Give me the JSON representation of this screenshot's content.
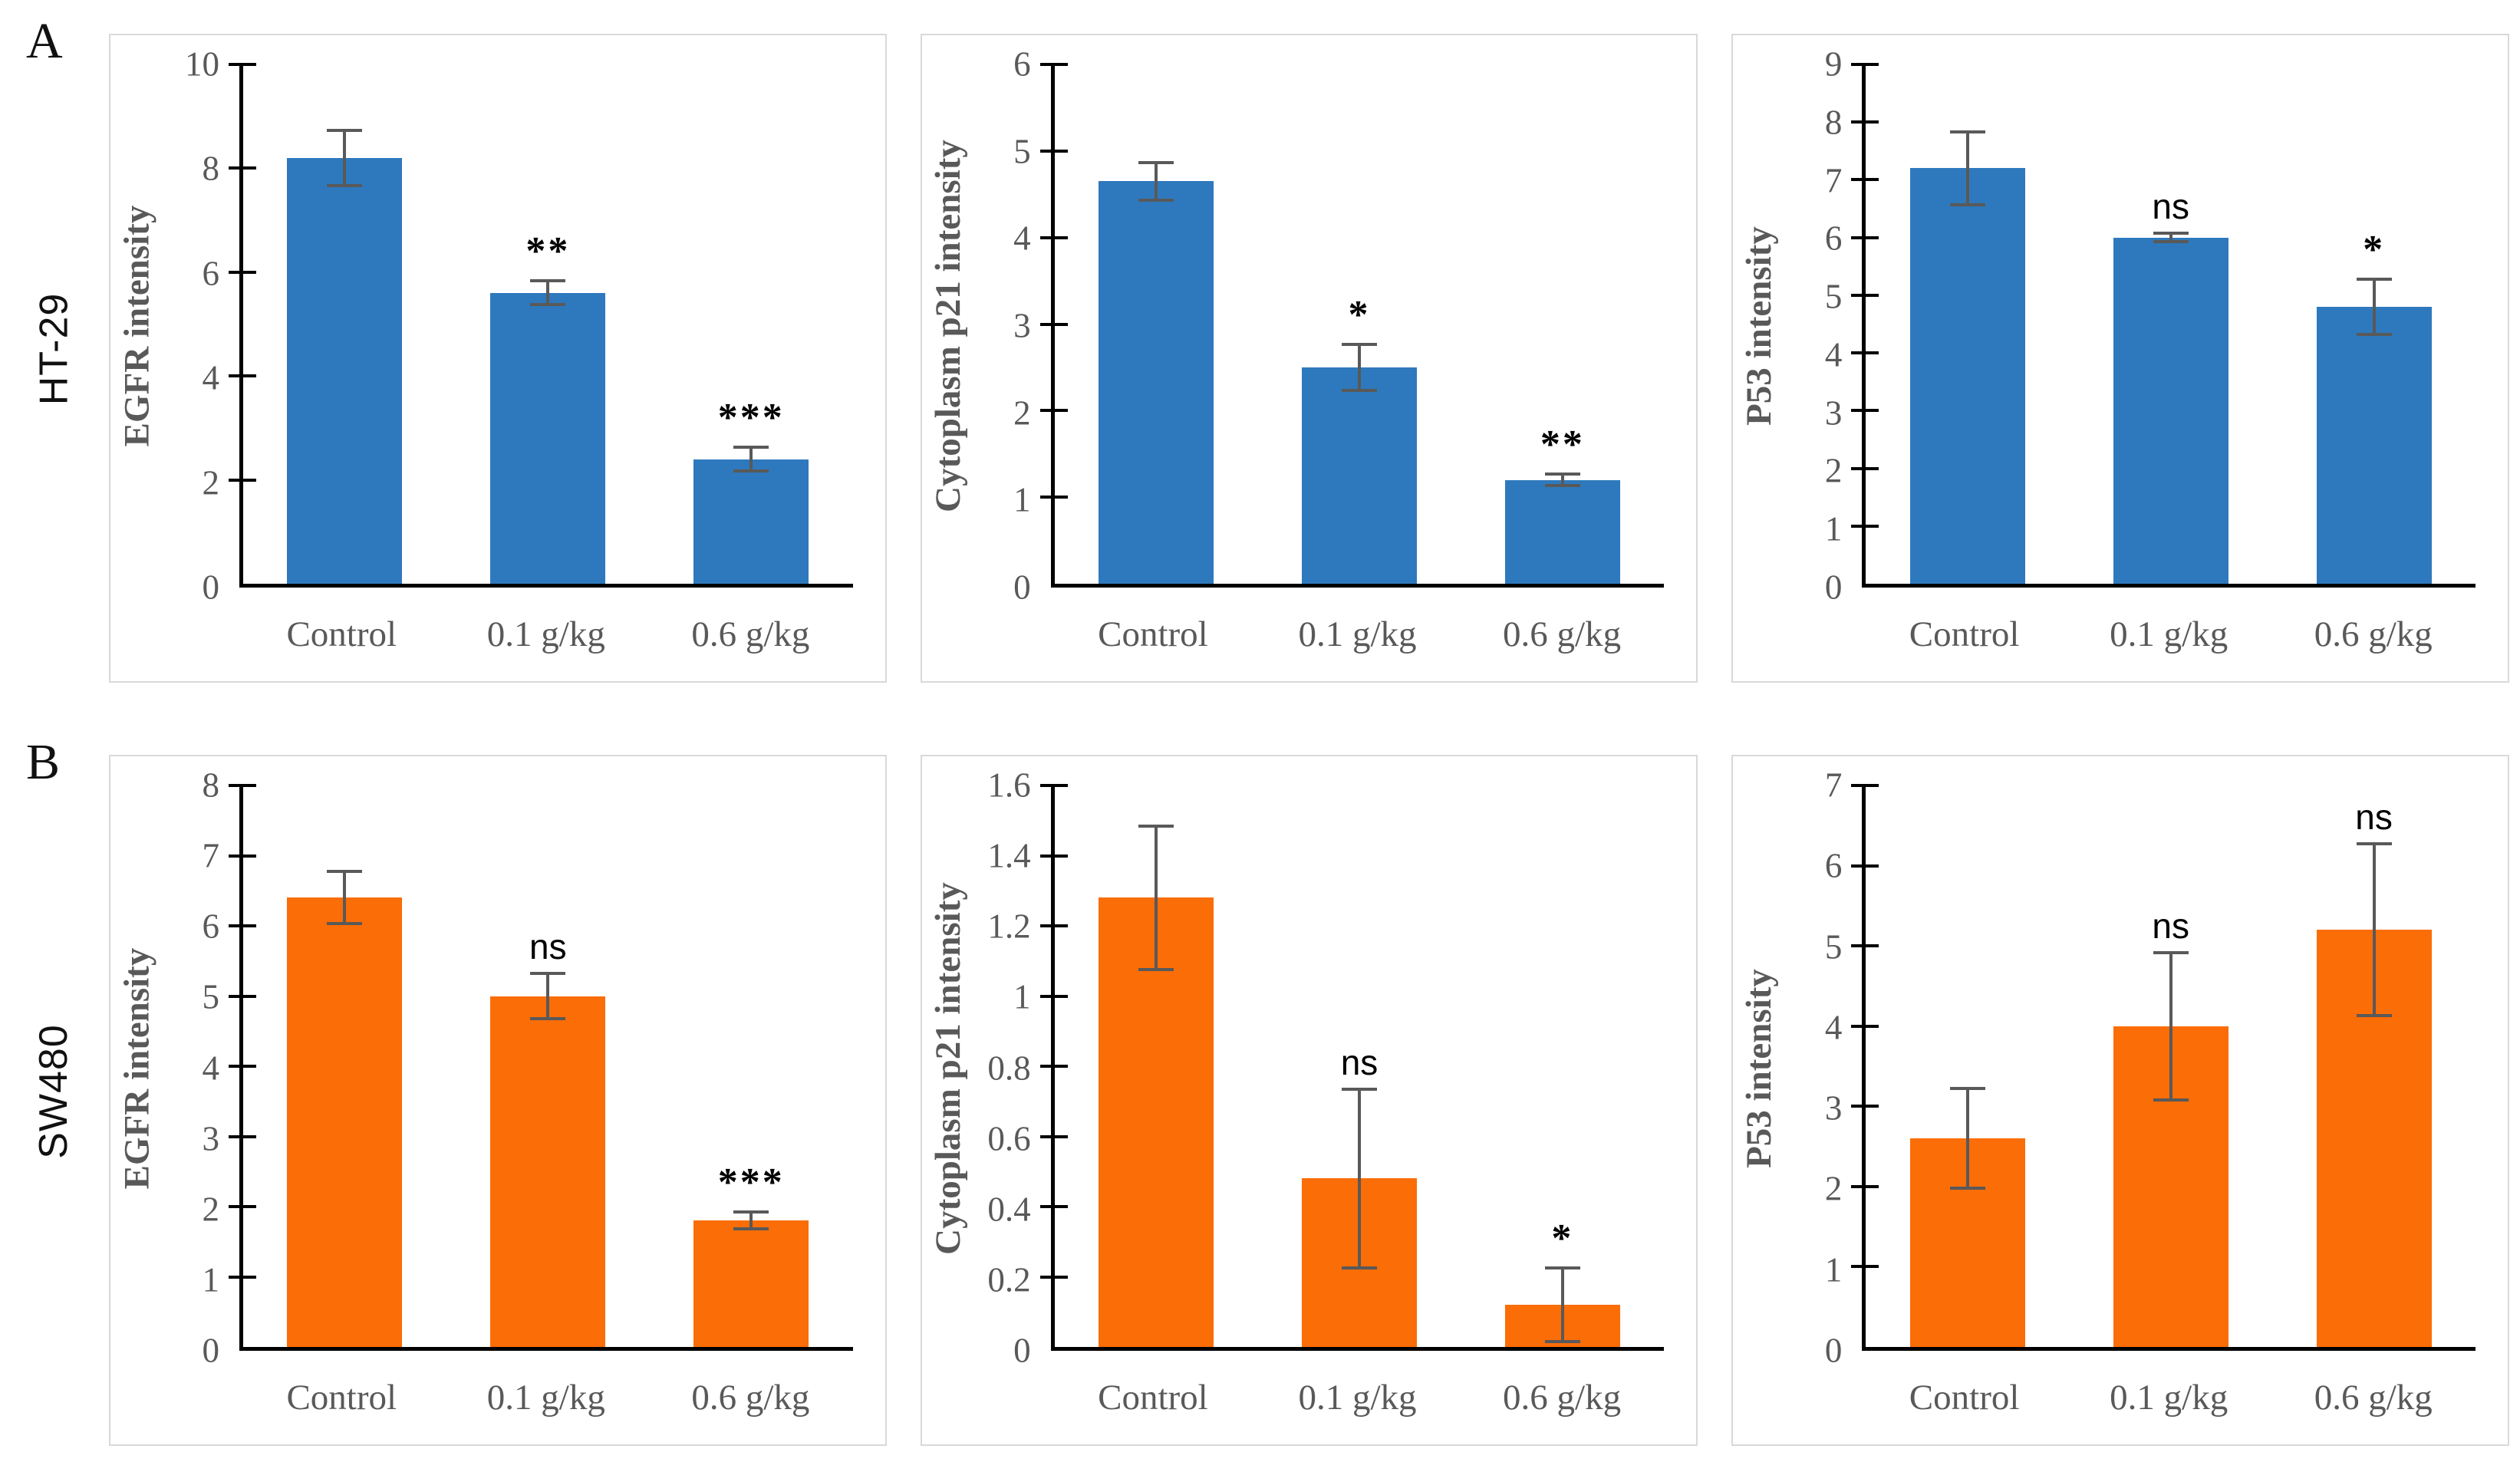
{
  "figure": {
    "panel_a_letter": "A",
    "panel_b_letter": "B",
    "row_a_label": "HT-29",
    "row_b_label": "SW480",
    "colors": {
      "row_a_bar": "#2E79BD",
      "row_b_bar": "#FB6D07",
      "error_bar": "#595959",
      "axis_text": "#595959",
      "axis_line": "#000000",
      "panel_border": "#D9D9D9"
    }
  },
  "chart_data": [
    {
      "type": "bar",
      "cell_line": "HT-29",
      "title": "",
      "xlabel": "",
      "ylabel": "EGFR intensity",
      "categories": [
        "Control",
        "0.1 g/kg",
        "0.6 g/kg"
      ],
      "values": [
        8.2,
        5.6,
        2.4
      ],
      "errors": [
        0.5,
        0.2,
        0.2
      ],
      "significance": [
        "",
        "**",
        "***"
      ],
      "ylim": [
        0,
        10
      ],
      "ytick_step": 2,
      "bar_color": "#2E79BD",
      "grid": false,
      "legend": false
    },
    {
      "type": "bar",
      "cell_line": "HT-29",
      "title": "",
      "xlabel": "",
      "ylabel": "Cytoplasm p21 intensity",
      "categories": [
        "Control",
        "0.1 g/kg",
        "0.6 g/kg"
      ],
      "values": [
        4.65,
        2.5,
        1.2
      ],
      "errors": [
        0.2,
        0.25,
        0.05
      ],
      "significance": [
        "",
        "*",
        "**"
      ],
      "ylim": [
        0,
        6
      ],
      "ytick_step": 1,
      "bar_color": "#2E79BD",
      "grid": false,
      "legend": false
    },
    {
      "type": "bar",
      "cell_line": "HT-29",
      "title": "",
      "xlabel": "",
      "ylabel": "P53 intensity",
      "categories": [
        "Control",
        "0.1 g/kg",
        "0.6 g/kg"
      ],
      "values": [
        7.2,
        6.0,
        4.8
      ],
      "errors": [
        0.6,
        0.05,
        0.45
      ],
      "significance": [
        "",
        "ns",
        "*"
      ],
      "ylim": [
        0,
        9
      ],
      "ytick_step": 1,
      "bar_color": "#2E79BD",
      "grid": false,
      "legend": false
    },
    {
      "type": "bar",
      "cell_line": "SW480",
      "title": "",
      "xlabel": "",
      "ylabel": "EGFR intensity",
      "categories": [
        "Control",
        "0.1 g/kg",
        "0.6 g/kg"
      ],
      "values": [
        6.4,
        5.0,
        1.8
      ],
      "errors": [
        0.35,
        0.3,
        0.1
      ],
      "significance": [
        "",
        "ns",
        "***"
      ],
      "ylim": [
        0,
        8
      ],
      "ytick_step": 1,
      "bar_color": "#FB6D07",
      "grid": false,
      "legend": false
    },
    {
      "type": "bar",
      "cell_line": "SW480",
      "title": "",
      "xlabel": "",
      "ylabel": "Cytoplasm p21 intensity",
      "categories": [
        "Control",
        "0.1 g/kg",
        "0.6 g/kg"
      ],
      "values": [
        1.28,
        0.48,
        0.12
      ],
      "errors": [
        0.2,
        0.25,
        0.1
      ],
      "significance": [
        "",
        "ns",
        "*"
      ],
      "ylim": [
        0,
        1.6
      ],
      "ytick_step": 0.2,
      "bar_color": "#FB6D07",
      "grid": false,
      "legend": false
    },
    {
      "type": "bar",
      "cell_line": "SW480",
      "title": "",
      "xlabel": "",
      "ylabel": "P53 intensity",
      "categories": [
        "Control",
        "0.1 g/kg",
        "0.6 g/kg"
      ],
      "values": [
        2.6,
        4.0,
        5.2
      ],
      "errors": [
        0.6,
        0.9,
        1.05
      ],
      "significance": [
        "",
        "ns",
        "ns"
      ],
      "ylim": [
        0,
        7
      ],
      "ytick_step": 1,
      "bar_color": "#FB6D07",
      "grid": false,
      "legend": false
    }
  ]
}
